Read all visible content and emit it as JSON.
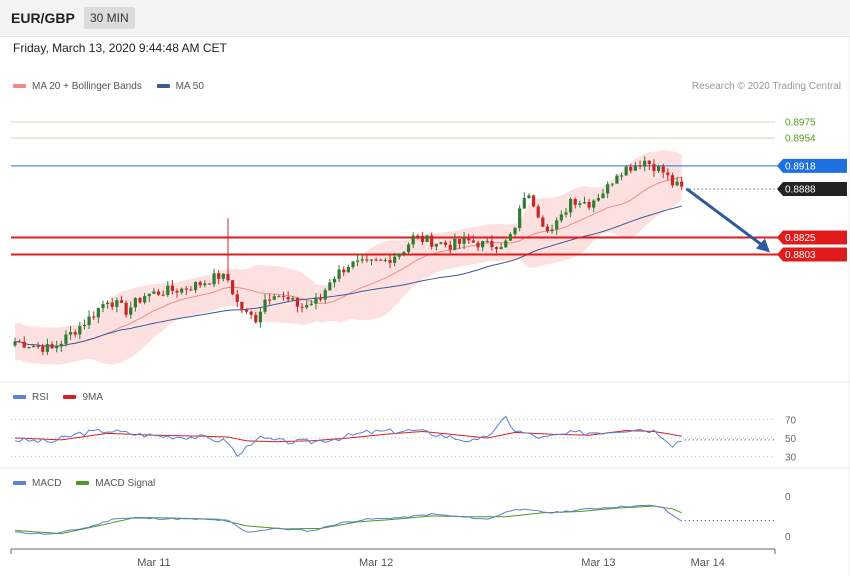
{
  "header": {
    "pair": "EUR/GBP",
    "timeframe": "30 MIN"
  },
  "datetime": "Friday, March 13, 2020 9:44:48 AM CET",
  "credit": "Research © 2020 Trading Central",
  "colors": {
    "up": "#2e7d32",
    "down": "#c62828",
    "band": "#fddcdc",
    "ma20": "#f08a8a",
    "ma50": "#3d5a99",
    "resist_green": "#5a9a1e",
    "pivot_blue": "#1e6fe0",
    "support_red": "#e01b1b",
    "last": "#222222",
    "arrow": "#2c5aa0",
    "rsi": "#5b7fd6",
    "rsi_ma": "#d42020",
    "macd": "#5b7fd6",
    "macd_signal": "#4e9a1b"
  },
  "chart_data": [
    {
      "type": "candlestick",
      "title": "",
      "ylim": [
        0.864,
        0.901
      ],
      "legend": [
        {
          "label": "MA 20 + Bollinger Bands",
          "color": "#f08a8a"
        },
        {
          "label": "MA 50",
          "color": "#3d5a99"
        }
      ],
      "x_ticks": [
        {
          "label": "Mar 11",
          "index": 30
        },
        {
          "label": "Mar 12",
          "index": 78
        },
        {
          "label": "Mar 13",
          "index": 126
        },
        {
          "label": "Mar 14",
          "index": 144
        }
      ],
      "levels": [
        {
          "value": 0.8975,
          "label": "0.8975",
          "kind": "resistance-faint"
        },
        {
          "value": 0.8954,
          "label": "0.8954",
          "kind": "resistance-faint"
        },
        {
          "value": 0.8918,
          "label": "0.8918",
          "kind": "pivot"
        },
        {
          "value": 0.8888,
          "label": "0.8888",
          "kind": "last"
        },
        {
          "value": 0.8825,
          "label": "0.8825",
          "kind": "support"
        },
        {
          "value": 0.8803,
          "label": "0.8803",
          "kind": "support"
        }
      ],
      "anchors": [
        [
          0,
          0.869
        ],
        [
          4,
          0.8685
        ],
        [
          8,
          0.868
        ],
        [
          12,
          0.87
        ],
        [
          16,
          0.872
        ],
        [
          20,
          0.8745
        ],
        [
          24,
          0.873
        ],
        [
          28,
          0.875
        ],
        [
          32,
          0.8755
        ],
        [
          36,
          0.8758
        ],
        [
          40,
          0.8765
        ],
        [
          44,
          0.8775
        ],
        [
          46,
          0.877
        ],
        [
          48,
          0.874
        ],
        [
          50,
          0.8725
        ],
        [
          52,
          0.872
        ],
        [
          54,
          0.8745
        ],
        [
          56,
          0.8755
        ],
        [
          58,
          0.8745
        ],
        [
          62,
          0.8735
        ],
        [
          66,
          0.8745
        ],
        [
          68,
          0.877
        ],
        [
          72,
          0.879
        ],
        [
          76,
          0.879
        ],
        [
          80,
          0.8795
        ],
        [
          84,
          0.881
        ],
        [
          86,
          0.8825
        ],
        [
          90,
          0.882
        ],
        [
          94,
          0.8815
        ],
        [
          98,
          0.882
        ],
        [
          102,
          0.8815
        ],
        [
          106,
          0.8818
        ],
        [
          108,
          0.8835
        ],
        [
          110,
          0.888
        ],
        [
          112,
          0.887
        ],
        [
          114,
          0.8845
        ],
        [
          116,
          0.8835
        ],
        [
          118,
          0.885
        ],
        [
          120,
          0.8875
        ],
        [
          124,
          0.887
        ],
        [
          126,
          0.888
        ],
        [
          128,
          0.889
        ],
        [
          130,
          0.891
        ],
        [
          132,
          0.8915
        ],
        [
          134,
          0.892
        ],
        [
          136,
          0.8925
        ],
        [
          138,
          0.8918
        ],
        [
          140,
          0.891
        ],
        [
          142,
          0.8895
        ],
        [
          144,
          0.8888
        ]
      ],
      "spike_high": {
        "index": 46,
        "value": 0.885
      }
    },
    {
      "type": "line",
      "legend": [
        {
          "label": "RSI",
          "color": "#5b7fd6"
        },
        {
          "label": "9MA",
          "color": "#d42020"
        }
      ],
      "y_ticks": [
        "70",
        "50",
        "30"
      ],
      "ylim": [
        20,
        80
      ],
      "series": [
        {
          "name": "RSI",
          "anchors": [
            [
              0,
              48
            ],
            [
              8,
              46
            ],
            [
              14,
              55
            ],
            [
              20,
              58
            ],
            [
              26,
              54
            ],
            [
              32,
              52
            ],
            [
              40,
              51
            ],
            [
              46,
              46
            ],
            [
              48,
              30
            ],
            [
              52,
              50
            ],
            [
              58,
              46
            ],
            [
              64,
              46
            ],
            [
              70,
              50
            ],
            [
              76,
              56
            ],
            [
              80,
              57
            ],
            [
              86,
              58
            ],
            [
              90,
              55
            ],
            [
              96,
              49
            ],
            [
              100,
              46
            ],
            [
              104,
              60
            ],
            [
              106,
              72
            ],
            [
              108,
              58
            ],
            [
              114,
              50
            ],
            [
              120,
              55
            ],
            [
              128,
              57
            ],
            [
              134,
              60
            ],
            [
              138,
              58
            ],
            [
              140,
              52
            ],
            [
              142,
              43
            ],
            [
              144,
              48
            ]
          ]
        },
        {
          "name": "9MA",
          "anchors": [
            [
              0,
              50
            ],
            [
              10,
              48
            ],
            [
              20,
              55
            ],
            [
              30,
              53
            ],
            [
              40,
              52
            ],
            [
              46,
              51
            ],
            [
              50,
              47
            ],
            [
              56,
              46
            ],
            [
              64,
              47
            ],
            [
              72,
              50
            ],
            [
              80,
              54
            ],
            [
              88,
              57
            ],
            [
              96,
              53
            ],
            [
              102,
              50
            ],
            [
              108,
              56
            ],
            [
              116,
              54
            ],
            [
              124,
              53
            ],
            [
              132,
              58
            ],
            [
              138,
              57
            ],
            [
              144,
              52
            ]
          ]
        }
      ]
    },
    {
      "type": "line",
      "legend": [
        {
          "label": "MACD",
          "color": "#5b7fd6"
        },
        {
          "label": "MACD Signal",
          "color": "#4e9a1b"
        }
      ],
      "y_ticks": [
        "0",
        "0"
      ],
      "ylim": [
        -1,
        1
      ],
      "series": [
        {
          "name": "MACD",
          "anchors": [
            [
              0,
              -0.55
            ],
            [
              8,
              -0.62
            ],
            [
              16,
              -0.35
            ],
            [
              22,
              0.0
            ],
            [
              30,
              -0.02
            ],
            [
              40,
              -0.05
            ],
            [
              46,
              -0.1
            ],
            [
              50,
              -0.55
            ],
            [
              56,
              -0.4
            ],
            [
              64,
              -0.5
            ],
            [
              70,
              -0.2
            ],
            [
              76,
              -0.05
            ],
            [
              84,
              0.02
            ],
            [
              90,
              0.15
            ],
            [
              96,
              0.05
            ],
            [
              102,
              -0.05
            ],
            [
              108,
              0.35
            ],
            [
              116,
              0.2
            ],
            [
              124,
              0.35
            ],
            [
              132,
              0.45
            ],
            [
              138,
              0.48
            ],
            [
              140,
              0.38
            ],
            [
              142,
              0.1
            ],
            [
              144,
              -0.1
            ]
          ]
        },
        {
          "name": "MACD Signal",
          "anchors": [
            [
              0,
              -0.48
            ],
            [
              10,
              -0.6
            ],
            [
              18,
              -0.3
            ],
            [
              26,
              0.02
            ],
            [
              34,
              0.0
            ],
            [
              44,
              -0.05
            ],
            [
              50,
              -0.3
            ],
            [
              58,
              -0.42
            ],
            [
              66,
              -0.4
            ],
            [
              74,
              -0.15
            ],
            [
              82,
              -0.05
            ],
            [
              90,
              0.08
            ],
            [
              98,
              0.05
            ],
            [
              106,
              0.05
            ],
            [
              114,
              0.2
            ],
            [
              122,
              0.25
            ],
            [
              130,
              0.38
            ],
            [
              138,
              0.46
            ],
            [
              142,
              0.35
            ],
            [
              144,
              0.2
            ]
          ]
        }
      ]
    }
  ]
}
